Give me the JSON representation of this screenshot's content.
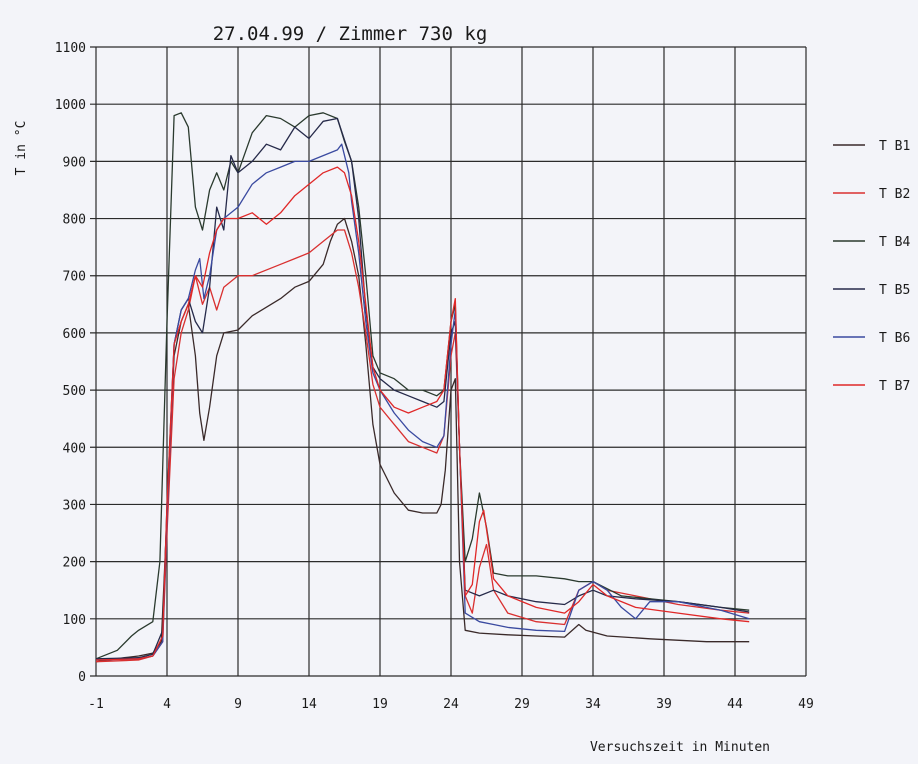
{
  "chart_data": {
    "type": "line",
    "title": "27.04.99 / Zimmer 730 kg",
    "xlabel": "Versuchszeit in Minuten",
    "ylabel": "T in °C",
    "xlim": [
      -1,
      49
    ],
    "ylim": [
      0,
      1100
    ],
    "xticks": [
      -1,
      4,
      9,
      14,
      19,
      24,
      29,
      34,
      39,
      44,
      49
    ],
    "yticks": [
      0,
      100,
      200,
      300,
      400,
      500,
      600,
      700,
      800,
      900,
      1000,
      1100
    ],
    "grid": true,
    "legend_position": "right",
    "series": [
      {
        "name": "T B1",
        "color": "#3a2a2a",
        "points": [
          [
            -1,
            25
          ],
          [
            1,
            32
          ],
          [
            2,
            35
          ],
          [
            3,
            40
          ],
          [
            3.6,
            60
          ],
          [
            4,
            280
          ],
          [
            4.5,
            560
          ],
          [
            5,
            620
          ],
          [
            5.5,
            650
          ],
          [
            6,
            560
          ],
          [
            6.3,
            460
          ],
          [
            6.6,
            412
          ],
          [
            7,
            470
          ],
          [
            7.5,
            560
          ],
          [
            8,
            600
          ],
          [
            9,
            605
          ],
          [
            10,
            630
          ],
          [
            12,
            660
          ],
          [
            13,
            680
          ],
          [
            14,
            690
          ],
          [
            15,
            720
          ],
          [
            15.5,
            760
          ],
          [
            16,
            790
          ],
          [
            16.5,
            800
          ],
          [
            17,
            760
          ],
          [
            17.5,
            700
          ],
          [
            18,
            580
          ],
          [
            18.5,
            440
          ],
          [
            19,
            370
          ],
          [
            20,
            320
          ],
          [
            21,
            290
          ],
          [
            22,
            285
          ],
          [
            23,
            285
          ],
          [
            23.3,
            300
          ],
          [
            23.6,
            360
          ],
          [
            24,
            500
          ],
          [
            24.3,
            520
          ],
          [
            24.6,
            200
          ],
          [
            25,
            80
          ],
          [
            26,
            75
          ],
          [
            28,
            72
          ],
          [
            30,
            70
          ],
          [
            32,
            68
          ],
          [
            33,
            90
          ],
          [
            33.5,
            80
          ],
          [
            35,
            70
          ],
          [
            38,
            65
          ],
          [
            42,
            60
          ],
          [
            45,
            60
          ]
        ]
      },
      {
        "name": "T B2",
        "color": "#d93030",
        "points": [
          [
            -1,
            25
          ],
          [
            2,
            28
          ],
          [
            3,
            35
          ],
          [
            3.7,
            60
          ],
          [
            4,
            250
          ],
          [
            4.5,
            520
          ],
          [
            5,
            600
          ],
          [
            5.5,
            640
          ],
          [
            6,
            700
          ],
          [
            6.5,
            650
          ],
          [
            7,
            680
          ],
          [
            7.5,
            640
          ],
          [
            8,
            680
          ],
          [
            9,
            700
          ],
          [
            10,
            700
          ],
          [
            12,
            720
          ],
          [
            13,
            730
          ],
          [
            14,
            740
          ],
          [
            15,
            760
          ],
          [
            16,
            780
          ],
          [
            16.5,
            780
          ],
          [
            17,
            740
          ],
          [
            17.5,
            680
          ],
          [
            18,
            600
          ],
          [
            18.5,
            510
          ],
          [
            19,
            470
          ],
          [
            20,
            440
          ],
          [
            21,
            410
          ],
          [
            22,
            400
          ],
          [
            23,
            390
          ],
          [
            23.5,
            420
          ],
          [
            24,
            560
          ],
          [
            24.3,
            600
          ],
          [
            24.6,
            400
          ],
          [
            25,
            140
          ],
          [
            25.5,
            110
          ],
          [
            26,
            190
          ],
          [
            26.5,
            230
          ],
          [
            27,
            150
          ],
          [
            28,
            110
          ],
          [
            30,
            95
          ],
          [
            32,
            90
          ],
          [
            33,
            150
          ],
          [
            34,
            165
          ],
          [
            35,
            150
          ],
          [
            37,
            140
          ],
          [
            40,
            125
          ],
          [
            43,
            115
          ],
          [
            45,
            110
          ]
        ]
      },
      {
        "name": "T B4",
        "color": "#2a3a2e",
        "points": [
          [
            -1,
            30
          ],
          [
            0.5,
            45
          ],
          [
            1.5,
            70
          ],
          [
            2,
            80
          ],
          [
            3,
            95
          ],
          [
            3.5,
            200
          ],
          [
            4,
            620
          ],
          [
            4.5,
            980
          ],
          [
            5,
            985
          ],
          [
            5.5,
            960
          ],
          [
            6,
            820
          ],
          [
            6.5,
            780
          ],
          [
            7,
            850
          ],
          [
            7.5,
            880
          ],
          [
            8,
            850
          ],
          [
            8.5,
            900
          ],
          [
            9,
            880
          ],
          [
            10,
            950
          ],
          [
            11,
            980
          ],
          [
            12,
            975
          ],
          [
            13,
            960
          ],
          [
            14,
            980
          ],
          [
            15,
            985
          ],
          [
            16,
            975
          ],
          [
            16.5,
            935
          ],
          [
            17,
            900
          ],
          [
            17.5,
            820
          ],
          [
            18,
            700
          ],
          [
            18.5,
            560
          ],
          [
            19,
            530
          ],
          [
            20,
            520
          ],
          [
            21,
            500
          ],
          [
            22,
            500
          ],
          [
            23,
            490
          ],
          [
            23.5,
            500
          ],
          [
            24,
            620
          ],
          [
            24.3,
            650
          ],
          [
            24.6,
            400
          ],
          [
            25,
            200
          ],
          [
            25.5,
            240
          ],
          [
            26,
            320
          ],
          [
            26.5,
            260
          ],
          [
            27,
            180
          ],
          [
            28,
            175
          ],
          [
            30,
            175
          ],
          [
            32,
            170
          ],
          [
            33,
            165
          ],
          [
            34,
            165
          ],
          [
            36,
            140
          ],
          [
            40,
            130
          ],
          [
            43,
            120
          ],
          [
            45,
            115
          ]
        ]
      },
      {
        "name": "T B5",
        "color": "#262a4a",
        "points": [
          [
            -1,
            30
          ],
          [
            2,
            32
          ],
          [
            3,
            38
          ],
          [
            3.7,
            80
          ],
          [
            4,
            300
          ],
          [
            4.5,
            580
          ],
          [
            5,
            640
          ],
          [
            5.5,
            660
          ],
          [
            6,
            620
          ],
          [
            6.5,
            600
          ],
          [
            7,
            680
          ],
          [
            7.5,
            820
          ],
          [
            8,
            780
          ],
          [
            8.5,
            910
          ],
          [
            9,
            880
          ],
          [
            10,
            900
          ],
          [
            11,
            930
          ],
          [
            12,
            920
          ],
          [
            13,
            960
          ],
          [
            14,
            940
          ],
          [
            15,
            970
          ],
          [
            16,
            975
          ],
          [
            17,
            900
          ],
          [
            17.5,
            800
          ],
          [
            18,
            640
          ],
          [
            18.5,
            540
          ],
          [
            19,
            520
          ],
          [
            20,
            500
          ],
          [
            21,
            490
          ],
          [
            22,
            480
          ],
          [
            23,
            470
          ],
          [
            23.5,
            480
          ],
          [
            24,
            600
          ],
          [
            24.3,
            620
          ],
          [
            24.6,
            400
          ],
          [
            25,
            150
          ],
          [
            26,
            140
          ],
          [
            27,
            150
          ],
          [
            28,
            140
          ],
          [
            30,
            130
          ],
          [
            32,
            125
          ],
          [
            33,
            140
          ],
          [
            34,
            150
          ],
          [
            35,
            140
          ],
          [
            37,
            135
          ],
          [
            40,
            130
          ],
          [
            43,
            120
          ],
          [
            45,
            112
          ]
        ]
      },
      {
        "name": "T B6",
        "color": "#3a4aa0",
        "points": [
          [
            -1,
            28
          ],
          [
            2,
            30
          ],
          [
            3,
            35
          ],
          [
            3.7,
            60
          ],
          [
            4,
            280
          ],
          [
            4.5,
            580
          ],
          [
            5,
            640
          ],
          [
            5.5,
            660
          ],
          [
            6,
            710
          ],
          [
            6.3,
            730
          ],
          [
            6.6,
            660
          ],
          [
            7,
            700
          ],
          [
            7.5,
            780
          ],
          [
            8,
            800
          ],
          [
            9,
            820
          ],
          [
            10,
            860
          ],
          [
            11,
            880
          ],
          [
            12,
            890
          ],
          [
            13,
            900
          ],
          [
            14,
            900
          ],
          [
            15,
            910
          ],
          [
            16,
            920
          ],
          [
            16.3,
            930
          ],
          [
            16.8,
            880
          ],
          [
            17,
            830
          ],
          [
            17.5,
            740
          ],
          [
            18,
            620
          ],
          [
            18.5,
            530
          ],
          [
            19,
            500
          ],
          [
            20,
            460
          ],
          [
            21,
            430
          ],
          [
            22,
            410
          ],
          [
            23,
            400
          ],
          [
            23.5,
            420
          ],
          [
            24,
            580
          ],
          [
            24.3,
            640
          ],
          [
            24.6,
            400
          ],
          [
            25,
            110
          ],
          [
            26,
            95
          ],
          [
            27,
            90
          ],
          [
            28,
            85
          ],
          [
            30,
            80
          ],
          [
            32,
            78
          ],
          [
            33,
            150
          ],
          [
            34,
            165
          ],
          [
            35,
            150
          ],
          [
            36,
            120
          ],
          [
            37,
            100
          ],
          [
            38,
            130
          ],
          [
            40,
            130
          ],
          [
            43,
            115
          ],
          [
            45,
            100
          ]
        ]
      },
      {
        "name": "T B7",
        "color": "#e02828",
        "points": [
          [
            -1,
            28
          ],
          [
            2,
            30
          ],
          [
            3,
            35
          ],
          [
            3.7,
            70
          ],
          [
            4,
            300
          ],
          [
            4.5,
            580
          ],
          [
            5,
            620
          ],
          [
            5.5,
            650
          ],
          [
            6,
            700
          ],
          [
            6.5,
            680
          ],
          [
            7,
            740
          ],
          [
            7.5,
            780
          ],
          [
            8,
            800
          ],
          [
            9,
            800
          ],
          [
            10,
            810
          ],
          [
            11,
            790
          ],
          [
            12,
            810
          ],
          [
            13,
            840
          ],
          [
            14,
            860
          ],
          [
            15,
            880
          ],
          [
            16,
            890
          ],
          [
            16.5,
            880
          ],
          [
            17,
            840
          ],
          [
            17.5,
            760
          ],
          [
            18,
            650
          ],
          [
            18.5,
            540
          ],
          [
            19,
            500
          ],
          [
            20,
            470
          ],
          [
            21,
            460
          ],
          [
            22,
            470
          ],
          [
            23,
            480
          ],
          [
            23.5,
            500
          ],
          [
            24,
            620
          ],
          [
            24.3,
            660
          ],
          [
            24.6,
            400
          ],
          [
            25,
            140
          ],
          [
            25.5,
            160
          ],
          [
            26,
            270
          ],
          [
            26.3,
            290
          ],
          [
            26.6,
            240
          ],
          [
            27,
            170
          ],
          [
            28,
            140
          ],
          [
            30,
            120
          ],
          [
            32,
            110
          ],
          [
            33,
            130
          ],
          [
            34,
            160
          ],
          [
            35,
            140
          ],
          [
            37,
            120
          ],
          [
            40,
            110
          ],
          [
            43,
            100
          ],
          [
            45,
            95
          ]
        ]
      }
    ]
  }
}
